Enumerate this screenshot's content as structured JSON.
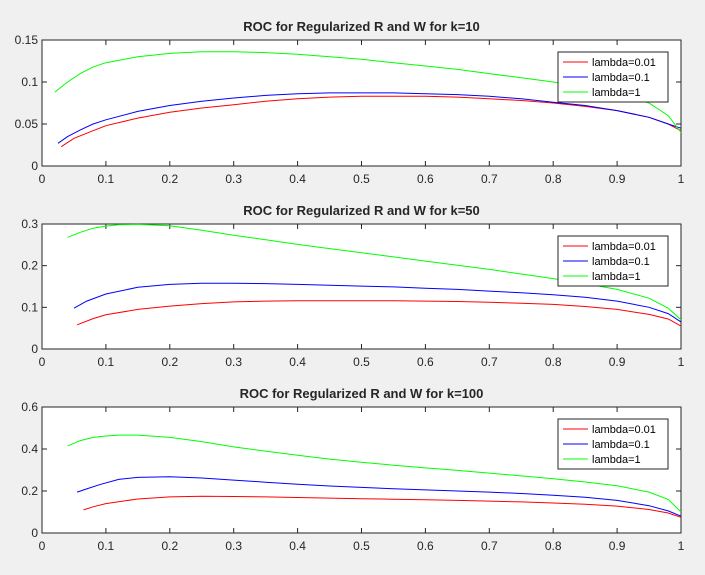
{
  "figure": {
    "background": "#f0f0f0"
  },
  "chart_data": [
    {
      "type": "line",
      "title": "ROC for Regularized R and W for k=10",
      "xlim": [
        0,
        1
      ],
      "ylim": [
        0,
        0.15
      ],
      "xticks": [
        "0",
        "0.1",
        "0.2",
        "0.3",
        "0.4",
        "0.5",
        "0.6",
        "0.7",
        "0.8",
        "0.9",
        "1"
      ],
      "yticks": [
        "0",
        "0.05",
        "0.1",
        "0.15"
      ],
      "grid": false,
      "legend_position": "top-right",
      "series": [
        {
          "name": "lambda=0.01",
          "color": "#ff0000",
          "x": [
            0.03,
            0.05,
            0.08,
            0.1,
            0.15,
            0.2,
            0.25,
            0.3,
            0.35,
            0.4,
            0.45,
            0.5,
            0.55,
            0.6,
            0.65,
            0.7,
            0.75,
            0.8,
            0.85,
            0.9,
            0.95,
            0.98,
            1.0
          ],
          "y": [
            0.023,
            0.033,
            0.042,
            0.048,
            0.057,
            0.064,
            0.069,
            0.073,
            0.077,
            0.08,
            0.082,
            0.083,
            0.083,
            0.083,
            0.082,
            0.08,
            0.078,
            0.075,
            0.071,
            0.066,
            0.058,
            0.05,
            0.042
          ]
        },
        {
          "name": "lambda=0.1",
          "color": "#0000ff",
          "x": [
            0.025,
            0.04,
            0.06,
            0.08,
            0.1,
            0.15,
            0.2,
            0.25,
            0.3,
            0.35,
            0.4,
            0.45,
            0.5,
            0.55,
            0.6,
            0.65,
            0.7,
            0.75,
            0.8,
            0.85,
            0.9,
            0.95,
            0.98,
            1.0
          ],
          "y": [
            0.027,
            0.035,
            0.043,
            0.05,
            0.055,
            0.065,
            0.072,
            0.077,
            0.081,
            0.084,
            0.086,
            0.087,
            0.087,
            0.087,
            0.086,
            0.085,
            0.083,
            0.08,
            0.076,
            0.072,
            0.066,
            0.058,
            0.05,
            0.045
          ]
        },
        {
          "name": "lambda=1",
          "color": "#00ff00",
          "x": [
            0.02,
            0.04,
            0.06,
            0.08,
            0.1,
            0.15,
            0.2,
            0.25,
            0.3,
            0.35,
            0.4,
            0.45,
            0.5,
            0.55,
            0.6,
            0.65,
            0.7,
            0.75,
            0.8,
            0.85,
            0.9,
            0.95,
            0.98,
            1.0
          ],
          "y": [
            0.088,
            0.1,
            0.11,
            0.118,
            0.123,
            0.13,
            0.134,
            0.136,
            0.136,
            0.135,
            0.133,
            0.13,
            0.127,
            0.123,
            0.119,
            0.115,
            0.11,
            0.105,
            0.1,
            0.094,
            0.086,
            0.075,
            0.06,
            0.04
          ]
        }
      ]
    },
    {
      "type": "line",
      "title": "ROC for Regularized R and W for k=50",
      "xlim": [
        0,
        1
      ],
      "ylim": [
        0,
        0.3
      ],
      "xticks": [
        "0",
        "0.1",
        "0.2",
        "0.3",
        "0.4",
        "0.5",
        "0.6",
        "0.7",
        "0.8",
        "0.9",
        "1"
      ],
      "yticks": [
        "0",
        "0.1",
        "0.2",
        "0.3"
      ],
      "grid": false,
      "legend_position": "top-right",
      "series": [
        {
          "name": "lambda=0.01",
          "color": "#ff0000",
          "x": [
            0.055,
            0.08,
            0.1,
            0.15,
            0.2,
            0.25,
            0.3,
            0.35,
            0.4,
            0.45,
            0.5,
            0.55,
            0.6,
            0.65,
            0.7,
            0.75,
            0.8,
            0.85,
            0.9,
            0.95,
            0.98,
            1.0
          ],
          "y": [
            0.058,
            0.073,
            0.082,
            0.095,
            0.103,
            0.109,
            0.113,
            0.115,
            0.116,
            0.116,
            0.116,
            0.116,
            0.115,
            0.114,
            0.112,
            0.11,
            0.107,
            0.102,
            0.095,
            0.083,
            0.072,
            0.055
          ]
        },
        {
          "name": "lambda=0.1",
          "color": "#0000ff",
          "x": [
            0.05,
            0.07,
            0.1,
            0.15,
            0.2,
            0.25,
            0.3,
            0.35,
            0.4,
            0.45,
            0.5,
            0.55,
            0.6,
            0.65,
            0.7,
            0.75,
            0.8,
            0.85,
            0.9,
            0.95,
            0.98,
            1.0
          ],
          "y": [
            0.098,
            0.115,
            0.132,
            0.148,
            0.155,
            0.158,
            0.158,
            0.157,
            0.155,
            0.153,
            0.151,
            0.149,
            0.146,
            0.143,
            0.139,
            0.135,
            0.13,
            0.124,
            0.115,
            0.1,
            0.085,
            0.065
          ]
        },
        {
          "name": "lambda=1",
          "color": "#00ff00",
          "x": [
            0.04,
            0.06,
            0.08,
            0.1,
            0.12,
            0.15,
            0.2,
            0.25,
            0.3,
            0.35,
            0.4,
            0.45,
            0.5,
            0.55,
            0.6,
            0.65,
            0.7,
            0.75,
            0.8,
            0.85,
            0.9,
            0.95,
            0.98,
            1.0
          ],
          "y": [
            0.268,
            0.28,
            0.29,
            0.295,
            0.298,
            0.299,
            0.296,
            0.285,
            0.273,
            0.262,
            0.251,
            0.241,
            0.231,
            0.221,
            0.211,
            0.201,
            0.191,
            0.18,
            0.169,
            0.157,
            0.143,
            0.122,
            0.098,
            0.07
          ]
        }
      ]
    },
    {
      "type": "line",
      "title": "ROC for Regularized R and W for k=100",
      "xlim": [
        0,
        1
      ],
      "ylim": [
        0,
        0.6
      ],
      "xticks": [
        "0",
        "0.1",
        "0.2",
        "0.3",
        "0.4",
        "0.5",
        "0.6",
        "0.7",
        "0.8",
        "0.9",
        "1"
      ],
      "yticks": [
        "0",
        "0.2",
        "0.4",
        "0.6"
      ],
      "grid": false,
      "legend_position": "top-right",
      "series": [
        {
          "name": "lambda=0.01",
          "color": "#ff0000",
          "x": [
            0.065,
            0.08,
            0.1,
            0.15,
            0.2,
            0.25,
            0.3,
            0.35,
            0.4,
            0.45,
            0.5,
            0.55,
            0.6,
            0.65,
            0.7,
            0.75,
            0.8,
            0.85,
            0.9,
            0.95,
            0.98,
            1.0
          ],
          "y": [
            0.11,
            0.125,
            0.14,
            0.162,
            0.172,
            0.175,
            0.174,
            0.172,
            0.169,
            0.166,
            0.163,
            0.161,
            0.158,
            0.155,
            0.152,
            0.148,
            0.143,
            0.137,
            0.128,
            0.112,
            0.095,
            0.075
          ]
        },
        {
          "name": "lambda=0.1",
          "color": "#0000ff",
          "x": [
            0.055,
            0.07,
            0.09,
            0.12,
            0.15,
            0.2,
            0.25,
            0.3,
            0.35,
            0.4,
            0.45,
            0.5,
            0.55,
            0.6,
            0.65,
            0.7,
            0.75,
            0.8,
            0.85,
            0.9,
            0.95,
            0.98,
            1.0
          ],
          "y": [
            0.195,
            0.21,
            0.23,
            0.255,
            0.265,
            0.268,
            0.262,
            0.252,
            0.242,
            0.232,
            0.224,
            0.217,
            0.211,
            0.205,
            0.2,
            0.195,
            0.188,
            0.18,
            0.17,
            0.155,
            0.13,
            0.105,
            0.08
          ]
        },
        {
          "name": "lambda=1",
          "color": "#00ff00",
          "x": [
            0.04,
            0.06,
            0.08,
            0.1,
            0.12,
            0.15,
            0.2,
            0.25,
            0.3,
            0.35,
            0.4,
            0.45,
            0.5,
            0.55,
            0.6,
            0.65,
            0.7,
            0.75,
            0.8,
            0.85,
            0.9,
            0.95,
            0.98,
            1.0
          ],
          "y": [
            0.415,
            0.44,
            0.455,
            0.462,
            0.466,
            0.466,
            0.455,
            0.435,
            0.41,
            0.39,
            0.37,
            0.352,
            0.337,
            0.323,
            0.31,
            0.298,
            0.285,
            0.272,
            0.258,
            0.243,
            0.225,
            0.195,
            0.16,
            0.1
          ]
        }
      ]
    }
  ]
}
